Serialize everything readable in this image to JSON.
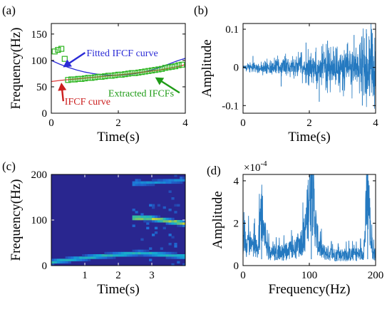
{
  "chart_data": [
    {
      "id": "a",
      "panel_label": "(a)",
      "type": "scatter",
      "xlabel": "Time(s)",
      "ylabel": "Frequency(Hz)",
      "xlim": [
        0,
        4
      ],
      "ylim": [
        0,
        170
      ],
      "xticks": [
        0,
        2,
        4
      ],
      "yticks": [
        0,
        50,
        100,
        150
      ],
      "series": [
        {
          "name": "Extracted IFCFs",
          "kind": "markers",
          "color": "#2bb51e",
          "x": [
            0.1,
            0.2,
            0.3,
            0.4,
            0.5,
            0.6,
            0.7,
            0.8,
            0.9,
            1.0,
            1.1,
            1.2,
            1.3,
            1.4,
            1.5,
            1.6,
            1.7,
            1.8,
            1.9,
            2.0,
            2.1,
            2.2,
            2.3,
            2.4,
            2.5,
            2.6,
            2.7,
            2.8,
            2.9,
            3.0,
            3.1,
            3.2,
            3.3,
            3.4,
            3.5,
            3.6,
            3.7,
            3.8,
            3.9
          ],
          "y": [
            117,
            120,
            122,
            103,
            63,
            64,
            64,
            65,
            65,
            66,
            67,
            67,
            68,
            69,
            69,
            70,
            71,
            71,
            72,
            73,
            73,
            74,
            75,
            76,
            76,
            77,
            78,
            79,
            80,
            81,
            82,
            83,
            84,
            86,
            87,
            88,
            89,
            91,
            92
          ]
        },
        {
          "name": "Fitted IFCF curve",
          "kind": "line",
          "color": "#2b2bd6",
          "x": [
            0,
            0.25,
            0.5,
            0.75,
            1.0,
            1.25,
            1.5,
            1.75,
            2.0,
            2.25,
            2.5,
            2.75,
            3.0,
            3.25,
            3.5,
            3.75,
            4.0
          ],
          "y": [
            100,
            93,
            87,
            82,
            78,
            75,
            73,
            72,
            72,
            73,
            75,
            78,
            82,
            87,
            93,
            99,
            104
          ]
        },
        {
          "name": "IFCF curve",
          "kind": "line",
          "color": "#e03a3a",
          "x": [
            0,
            0.25,
            0.5,
            0.75,
            1.0,
            1.25,
            1.5,
            1.75,
            2.0,
            2.25,
            2.5,
            2.75,
            3.0,
            3.25,
            3.5,
            3.75,
            4.0
          ],
          "y": [
            60,
            62,
            63.5,
            65,
            66.5,
            68,
            69.5,
            71,
            72.5,
            74,
            76,
            78,
            80,
            82,
            85,
            88,
            92
          ]
        }
      ],
      "annotations": [
        {
          "text": "Fitted IFCF curve",
          "color": "#2b2bd6",
          "tx": 1.05,
          "ty": 108,
          "ax": 0.35,
          "ay": 87
        },
        {
          "text": "IFCF curve",
          "color": "#cc1f1f",
          "tx": 0.4,
          "ty": 16,
          "ax": 0.3,
          "ay": 58
        },
        {
          "text": "Extracted IFCFs",
          "color": "#1f9c17",
          "tx": 1.7,
          "ty": 32,
          "ax": 3.1,
          "ay": 68
        }
      ]
    },
    {
      "id": "b",
      "panel_label": "(b)",
      "type": "line",
      "xlabel": "Time(s)",
      "ylabel": "Amplitude",
      "xlim": [
        0,
        4
      ],
      "ylim": [
        -0.12,
        0.115
      ],
      "xticks": [
        0,
        2,
        4
      ],
      "yticks": [
        -0.1,
        0,
        0.1
      ],
      "ytick_labels": [
        "-0.1",
        "0",
        "0.1"
      ],
      "series": [
        {
          "name": "",
          "color": "#2479c0",
          "envelope_t": [
            0,
            0.5,
            1.0,
            1.5,
            2.0,
            2.5,
            3.0,
            3.5,
            3.8,
            4.0
          ],
          "envelope_a": [
            0.012,
            0.016,
            0.025,
            0.035,
            0.045,
            0.055,
            0.068,
            0.082,
            0.1,
            0.09
          ],
          "spike_t": [
            0.3,
            1.15,
            1.9,
            2.3,
            2.55,
            3.0,
            3.35,
            3.6,
            3.72,
            3.82,
            3.9
          ],
          "spike_a": [
            0.03,
            -0.05,
            0.065,
            -0.09,
            0.07,
            -0.06,
            0.085,
            -0.1,
            0.1,
            -0.075,
            0.09
          ]
        }
      ]
    },
    {
      "id": "c",
      "panel_label": "(c)",
      "type": "heatmap",
      "xlabel": "Time(s)",
      "ylabel": "Frequency(Hz)",
      "xlim": [
        0,
        4
      ],
      "ylim": [
        0,
        200
      ],
      "xticks": [
        1,
        2,
        3
      ],
      "yticks": [
        0,
        100,
        200
      ],
      "background_color": "#29268f",
      "ridges": [
        {
          "t0": 0,
          "t1": 4,
          "f": [
            8,
            20,
            28,
            20
          ],
          "strength": 0.55
        },
        {
          "t0": 2.45,
          "t1": 4,
          "f": [
            105,
            104,
            98,
            92
          ],
          "strength": 0.95
        },
        {
          "t0": 2.45,
          "t1": 4,
          "f": [
            180,
            182,
            185,
            188
          ],
          "strength": 0.35
        }
      ]
    },
    {
      "id": "d",
      "panel_label": "(d)",
      "type": "line",
      "xlabel": "Frequency(Hz)",
      "ylabel": "Amplitude",
      "exponent_label": "×10",
      "exponent_power": "-4",
      "xlim": [
        0,
        200
      ],
      "ylim": [
        0,
        4.3
      ],
      "xticks": [
        0,
        100,
        200
      ],
      "yticks": [
        0,
        2,
        4
      ],
      "series": [
        {
          "name": "",
          "color": "#2479c0",
          "baseline_f": [
            0,
            10,
            20,
            30,
            40,
            60,
            80,
            100,
            120,
            140,
            160,
            180,
            190,
            200
          ],
          "baseline_a": [
            1.2,
            1.1,
            1.0,
            0.9,
            0.7,
            0.65,
            0.9,
            1.8,
            0.7,
            0.55,
            0.55,
            0.6,
            1.2,
            0.5
          ],
          "peaks_f": [
            28,
            103,
            188
          ],
          "peaks_a": [
            2.9,
            4.2,
            4.1
          ]
        }
      ]
    }
  ]
}
